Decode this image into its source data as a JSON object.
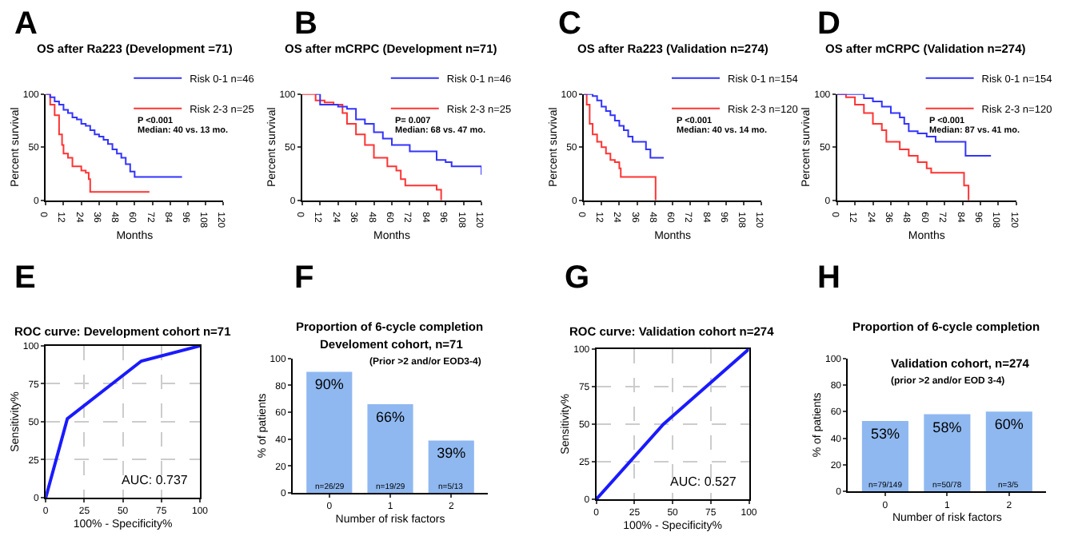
{
  "chart_data": [
    {
      "type": "step",
      "title": "OS after Ra223 (Development =71)",
      "xlabel": "Months",
      "ylabel": "Percent survival",
      "xlim": [
        0,
        120
      ],
      "ylim": [
        0,
        100
      ],
      "xticks": [
        0,
        12,
        24,
        36,
        48,
        60,
        72,
        84,
        96,
        108,
        120
      ],
      "yticks": [
        0,
        50,
        100
      ],
      "legend": "top right",
      "annotations": [
        "A",
        "P <0.001",
        "Median: 40 vs. 13 mo."
      ],
      "series": [
        {
          "name": "Risk 0-1 n=46",
          "color": "#3333ff",
          "x": [
            0,
            3,
            6,
            9,
            12,
            15,
            18,
            21,
            24,
            27,
            30,
            33,
            36,
            39,
            42,
            45,
            48,
            51,
            54,
            57,
            60,
            72,
            84,
            92
          ],
          "values": [
            100,
            97,
            93,
            90,
            85,
            82,
            78,
            76,
            72,
            70,
            66,
            62,
            60,
            57,
            53,
            48,
            44,
            40,
            34,
            27,
            22,
            22,
            22,
            22
          ]
        },
        {
          "name": "Risk 2-3 n=25",
          "color": "#ff3333",
          "x": [
            0,
            3,
            6,
            9,
            11,
            12,
            15,
            18,
            24,
            27,
            29,
            30,
            70
          ],
          "values": [
            100,
            90,
            80,
            62,
            52,
            44,
            40,
            32,
            28,
            26,
            20,
            8,
            8
          ]
        }
      ]
    },
    {
      "type": "step",
      "title": "OS after mCRPC (Development n=71)",
      "xlabel": "Months",
      "ylabel": "Percent survival",
      "xlim": [
        0,
        120
      ],
      "ylim": [
        0,
        100
      ],
      "xticks": [
        0,
        12,
        24,
        36,
        48,
        60,
        72,
        84,
        96,
        108,
        120
      ],
      "yticks": [
        0,
        50,
        100
      ],
      "legend": "top right",
      "annotations": [
        "B",
        "P= 0.007",
        "Median: 68 vs. 47 mo."
      ],
      "series": [
        {
          "name": "Risk 0-1 n=46",
          "color": "#3333ff",
          "x": [
            9,
            12,
            24,
            30,
            36,
            42,
            48,
            54,
            60,
            66,
            72,
            84,
            90,
            96,
            100,
            112,
            120
          ],
          "values": [
            100,
            90,
            88,
            86,
            76,
            72,
            64,
            58,
            52,
            52,
            46,
            46,
            38,
            36,
            32,
            32,
            24
          ]
        },
        {
          "name": "Risk 2-3 n=25",
          "color": "#ff3333",
          "x": [
            0,
            9,
            15,
            21,
            27,
            30,
            36,
            42,
            48,
            54,
            57,
            63,
            66,
            69,
            84,
            90,
            93
          ],
          "values": [
            100,
            94,
            92,
            90,
            82,
            72,
            62,
            52,
            40,
            40,
            32,
            28,
            20,
            14,
            14,
            10,
            0
          ]
        }
      ]
    },
    {
      "type": "step",
      "title": "OS after Ra223 (Validation n=274)",
      "xlabel": "Months",
      "ylabel": "Percent survival",
      "xlim": [
        0,
        120
      ],
      "ylim": [
        0,
        100
      ],
      "xticks": [
        0,
        12,
        24,
        36,
        48,
        60,
        72,
        84,
        96,
        108,
        120
      ],
      "yticks": [
        0,
        50,
        100
      ],
      "legend": "top right",
      "annotations": [
        "C",
        "P <0.001",
        "Median: 40 vs. 14 mo."
      ],
      "series": [
        {
          "name": "Risk 0-1 n=154",
          "color": "#3333ff",
          "x": [
            0,
            6,
            9,
            12,
            15,
            18,
            21,
            24,
            27,
            30,
            33,
            39,
            42,
            45,
            54
          ],
          "values": [
            100,
            98,
            94,
            88,
            84,
            80,
            75,
            70,
            66,
            60,
            55,
            55,
            48,
            40,
            40
          ]
        },
        {
          "name": "Risk 2-3 n=120",
          "color": "#ff3333",
          "x": [
            0,
            2,
            4,
            6,
            9,
            12,
            15,
            18,
            21,
            24,
            25,
            30,
            48,
            48.5
          ],
          "values": [
            100,
            90,
            72,
            62,
            55,
            50,
            44,
            38,
            36,
            30,
            22,
            22,
            22,
            0
          ]
        }
      ]
    },
    {
      "type": "step",
      "title": "OS after mCRPC (Validation n=274)",
      "xlabel": "Months",
      "ylabel": "Percent survival",
      "xlim": [
        0,
        120
      ],
      "ylim": [
        0,
        100
      ],
      "xticks": [
        0,
        12,
        24,
        36,
        48,
        60,
        72,
        84,
        96,
        108,
        120
      ],
      "yticks": [
        0,
        50,
        100
      ],
      "legend": "top right",
      "annotations": [
        "D",
        "P <0.001",
        "Median: 87 vs. 41 mo."
      ],
      "series": [
        {
          "name": "Risk 0-1 n=154",
          "color": "#3333ff",
          "x": [
            0,
            12,
            18,
            24,
            30,
            36,
            42,
            45,
            48,
            54,
            60,
            66,
            84,
            86,
            103
          ],
          "values": [
            100,
            100,
            96,
            93,
            88,
            82,
            78,
            72,
            65,
            63,
            60,
            55,
            55,
            42,
            42
          ]
        },
        {
          "name": "Risk 2-3 n=120",
          "color": "#ff3333",
          "x": [
            0,
            6,
            12,
            18,
            24,
            30,
            33,
            39,
            42,
            48,
            54,
            60,
            63,
            84,
            85,
            88
          ],
          "values": [
            100,
            97,
            90,
            82,
            72,
            66,
            55,
            55,
            48,
            42,
            36,
            30,
            26,
            26,
            14,
            0
          ]
        }
      ]
    },
    {
      "type": "line",
      "title": "ROC curve: Development cohort n=71",
      "xlabel": "100% - Specificity%",
      "ylabel": "Sensitivity%",
      "xlim": [
        0,
        100
      ],
      "ylim": [
        0,
        100
      ],
      "xticks": [
        0,
        25,
        50,
        75,
        100
      ],
      "yticks": [
        0,
        25,
        50,
        75,
        100
      ],
      "grid": true,
      "annotations": [
        "E",
        "AUC: 0.737"
      ],
      "series": [
        {
          "color": "#1a1aff",
          "x": [
            0,
            14,
            62,
            100
          ],
          "values": [
            0,
            52,
            90,
            100
          ]
        }
      ]
    },
    {
      "type": "bar",
      "title": "Proportion of 6-cycle completion",
      "subtitle": "Develoment cohort, n=71",
      "xlabel": "Number of risk factors",
      "ylabel": "% of patients",
      "categories": [
        "0",
        "1",
        "2"
      ],
      "ylim": [
        0,
        100
      ],
      "yticks": [
        0,
        20,
        40,
        60,
        80,
        100
      ],
      "annotations": [
        "F",
        "(Prior >2 and/or EOD3-4)",
        {
          "text": "n=26/29",
          "x": "0",
          "y": 4
        },
        {
          "text": "n=19/29",
          "x": "1",
          "y": 4
        },
        {
          "text": "n=5/13",
          "x": "2",
          "y": 4
        }
      ],
      "series": [
        {
          "color": "#8fb8f0",
          "values": [
            90,
            66,
            39
          ],
          "value_labels": [
            "90%",
            "66%",
            "39%"
          ]
        }
      ]
    },
    {
      "type": "line",
      "title": "ROC curve: Validation cohort n=274",
      "xlabel": "100% - Specificity%",
      "ylabel": "Sensitivity%",
      "xlim": [
        0,
        100
      ],
      "ylim": [
        0,
        100
      ],
      "xticks": [
        0,
        25,
        50,
        75,
        100
      ],
      "yticks": [
        0,
        25,
        50,
        75,
        100
      ],
      "grid": true,
      "annotations": [
        "G",
        "AUC: 0.527"
      ],
      "series": [
        {
          "color": "#1a1aff",
          "x": [
            0,
            44,
            100
          ],
          "values": [
            0,
            50,
            100
          ]
        }
      ]
    },
    {
      "type": "bar",
      "title": "Proportion of 6-cycle completion",
      "subtitle": "Validation cohort, n=274",
      "xlabel": "Number of risk factors",
      "ylabel": "% of patients",
      "categories": [
        "0",
        "1",
        "2"
      ],
      "ylim": [
        0,
        100
      ],
      "yticks": [
        0,
        20,
        40,
        60,
        80,
        100
      ],
      "annotations": [
        "H",
        "(prior >2 and/or EOD 3-4)",
        {
          "text": "n=79/149",
          "x": "0",
          "y": 4
        },
        {
          "text": "n=50/78",
          "x": "1",
          "y": 4
        },
        {
          "text": "n=3/5",
          "x": "2",
          "y": 4
        }
      ],
      "series": [
        {
          "color": "#8fb8f0",
          "values": [
            53,
            58,
            60
          ],
          "value_labels": [
            "53%",
            "58%",
            "60%"
          ]
        }
      ]
    }
  ]
}
